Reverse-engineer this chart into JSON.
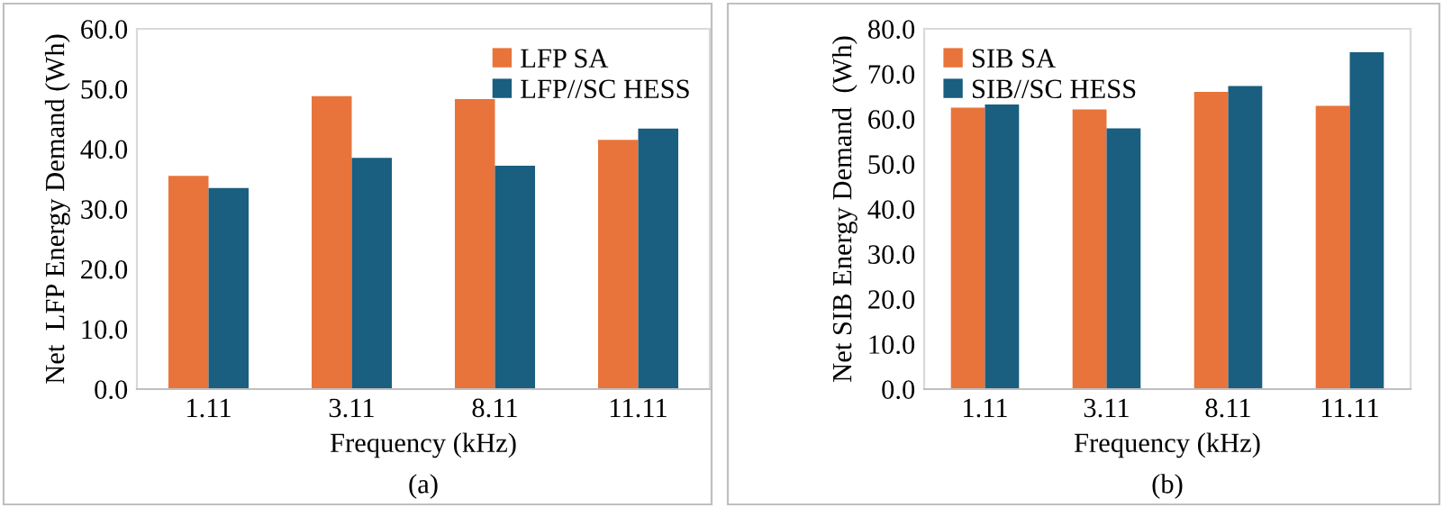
{
  "chart_data": [
    {
      "type": "bar",
      "categories": [
        "1.11",
        "3.11",
        "8.11",
        "11.11"
      ],
      "xlabel": "Frequency (kHz)",
      "ylabel": "Net  LFP Energy Demand (Wh)",
      "annotations": [
        "(a)"
      ],
      "series": [
        {
          "name": "LFP SA",
          "color": "#e8743b",
          "values": [
            35.5,
            48.8,
            48.3,
            41.5
          ]
        },
        {
          "name": "LFP//SC HESS",
          "color": "#1a5e80",
          "values": [
            33.5,
            38.5,
            37.2,
            43.4
          ]
        }
      ],
      "ylim": [
        0,
        60
      ],
      "yticks": [
        {
          "value": 0,
          "label": "0.0"
        },
        {
          "value": 10,
          "label": "10.0"
        },
        {
          "value": 20,
          "label": "20.0"
        },
        {
          "value": 30,
          "label": "30.0"
        },
        {
          "value": 40,
          "label": "40.0"
        },
        {
          "value": 50,
          "label": "50.0"
        },
        {
          "value": 60,
          "label": "60.0"
        }
      ],
      "legend": "top right",
      "grid": false
    },
    {
      "type": "bar",
      "categories": [
        "1.11",
        "3.11",
        "8.11",
        "11.11"
      ],
      "xlabel": "Frequency (kHz)",
      "ylabel": "Net SIB Energy Demand  (Wh)",
      "annotations": [
        "(b)"
      ],
      "series": [
        {
          "name": "SIB SA",
          "color": "#e8743b",
          "values": [
            62.5,
            62.1,
            66.0,
            62.9
          ]
        },
        {
          "name": "SIB//SC HESS",
          "color": "#1a5e80",
          "values": [
            63.2,
            57.9,
            67.3,
            74.8
          ]
        }
      ],
      "ylim": [
        0,
        80
      ],
      "yticks": [
        {
          "value": 0,
          "label": "0.0"
        },
        {
          "value": 10,
          "label": "10.0"
        },
        {
          "value": 20,
          "label": "20.0"
        },
        {
          "value": 30,
          "label": "30.0"
        },
        {
          "value": 40,
          "label": "40.0"
        },
        {
          "value": 50,
          "label": "50.0"
        },
        {
          "value": 60,
          "label": "60.0"
        },
        {
          "value": 70,
          "label": "70.0"
        },
        {
          "value": 80,
          "label": "80.0"
        }
      ],
      "legend": "top left",
      "grid": false
    }
  ]
}
